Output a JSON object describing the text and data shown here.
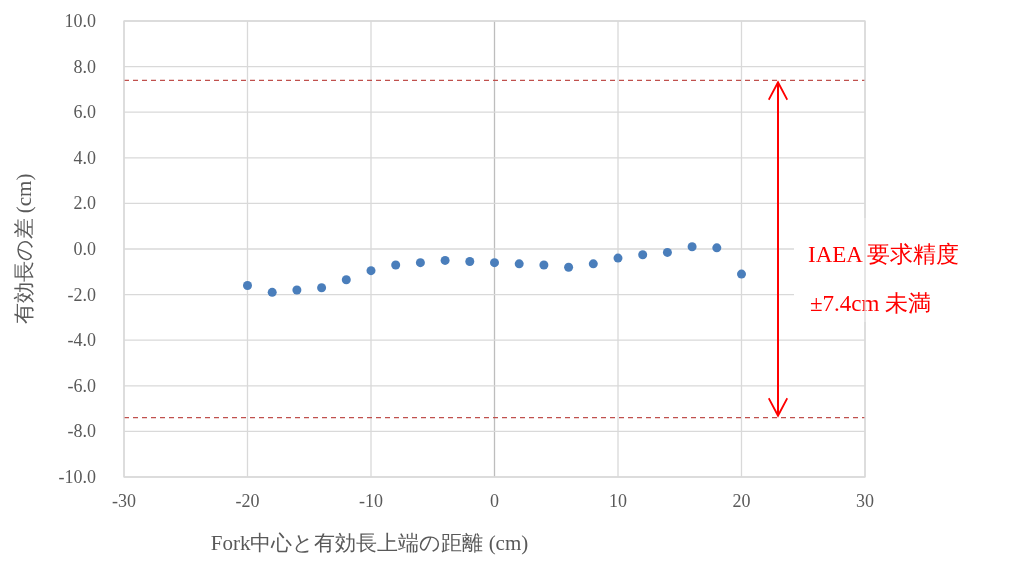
{
  "chart_data": {
    "type": "scatter",
    "xlabel": "Fork中心と有効長上端の距離 (cm)",
    "ylabel": "有効長の差 (cm)",
    "x": [
      -20,
      -18,
      -16,
      -14,
      -12,
      -10,
      -8,
      -6,
      -4,
      -2,
      0,
      2,
      4,
      6,
      8,
      10,
      12,
      14,
      16,
      18,
      20
    ],
    "series": [
      {
        "color": "#4a7ebb",
        "values": [
          -1.6,
          -1.9,
          -1.8,
          -1.7,
          -1.35,
          -0.95,
          -0.7,
          -0.6,
          -0.5,
          -0.55,
          -0.6,
          -0.65,
          -0.7,
          -0.8,
          -0.65,
          -0.4,
          -0.25,
          -0.15,
          0.1,
          0.05,
          -1.1
        ]
      }
    ],
    "xlim": [
      -30,
      30
    ],
    "xticks": [
      -30,
      -20,
      -10,
      0,
      10,
      20,
      30
    ],
    "ylim": [
      -10,
      10
    ],
    "yticks": [
      {
        "value": -10,
        "label": "-10.0"
      },
      {
        "value": -8,
        "label": "-8.0"
      },
      {
        "value": -6,
        "label": "-6.0"
      },
      {
        "value": -4,
        "label": "-4.0"
      },
      {
        "value": -2,
        "label": "-2.0"
      },
      {
        "value": 0,
        "label": "0.0"
      },
      {
        "value": 2,
        "label": "2.0"
      },
      {
        "value": 4,
        "label": "4.0"
      },
      {
        "value": 6,
        "label": "6.0"
      },
      {
        "value": 8,
        "label": "8.0"
      },
      {
        "value": 10,
        "label": "10.0"
      }
    ],
    "ref_lines": [
      {
        "axis": "y",
        "value": 7.4,
        "color": "#c0504d",
        "line_style": "dashed"
      },
      {
        "axis": "y",
        "value": -7.4,
        "color": "#c0504d",
        "line_style": "dashed"
      }
    ],
    "annotations": [
      "IAEA 要求精度",
      "±7.4cm 未満"
    ],
    "grid": true,
    "marker": "circle"
  }
}
